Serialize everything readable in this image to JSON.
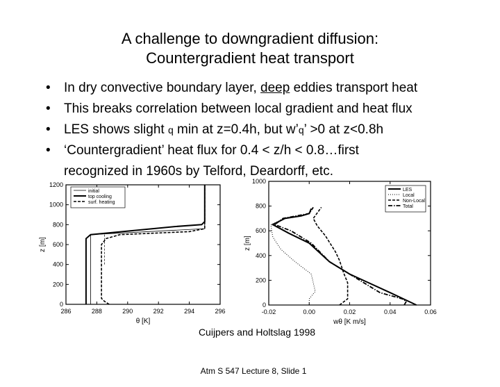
{
  "slide": {
    "title_line1": "A challenge to downgradient diffusion:",
    "title_line2": "Countergradient heat transport",
    "bullets": {
      "b1_pre": "In dry convective boundary layer, ",
      "b1_deep": "deep",
      "b1_post": " eddies transport heat",
      "b2": "This breaks correlation between local gradient and heat flux",
      "b3_a": "LES shows slight ",
      "b3_q": "q",
      "b3_b": " min at z=0.4h, but w",
      "b3_c": "’",
      "b3_d": "q",
      "b3_e": "’",
      "b3_f": " >0 at z<0.8h",
      "b4_a": "‘",
      "b4_b": "Countergradient",
      "b4_c": "’",
      "b4_d": " heat flux for 0.4 < z/h < 0.8…first",
      "b4_line2": "recognized in 1960s by Telford, Deardorff, etc."
    },
    "caption": "Cuijpers and Holtslag 1998",
    "footer": "Atm S 547  Lecture 8, Slide 1"
  },
  "chart_data": [
    {
      "type": "line",
      "xlabel": "θ [K]",
      "ylabel": "z [m]",
      "xlim": [
        286,
        296
      ],
      "ylim": [
        0,
        1200
      ],
      "xticks": [
        "286",
        "288",
        "290",
        "292",
        "294",
        "296"
      ],
      "yticks": [
        "0",
        "200",
        "400",
        "600",
        "800",
        "1000",
        "1200"
      ],
      "legend": "top-left",
      "series": [
        {
          "name": "initial",
          "style": "thin",
          "points": [
            [
              287.6,
              0
            ],
            [
              287.6,
              700
            ],
            [
              295,
              760
            ],
            [
              295,
              1200
            ]
          ]
        },
        {
          "name": "top  cooling",
          "style": "thick",
          "points": [
            [
              287.3,
              0
            ],
            [
              287.3,
              660
            ],
            [
              287.6,
              700
            ],
            [
              293,
              780
            ],
            [
              294.8,
              800
            ],
            [
              295,
              830
            ],
            [
              295,
              1200
            ]
          ]
        },
        {
          "name": "surf.  heating",
          "style": "dashed",
          "points": [
            [
              288.8,
              0
            ],
            [
              288.5,
              30
            ],
            [
              288.3,
              60
            ],
            [
              288.3,
              600
            ],
            [
              288.6,
              660
            ],
            [
              289.5,
              700
            ],
            [
              294,
              730
            ],
            [
              295,
              760
            ],
            [
              295,
              1200
            ]
          ]
        }
      ],
      "annotations": [
        {
          "kind": "dashed-vertical",
          "x": 288.5,
          "ymin": 400,
          "ymax": 700
        }
      ]
    },
    {
      "type": "line",
      "xlabel": "wθ [K m/s]",
      "ylabel": "z [m]",
      "xlim": [
        -0.02,
        0.06
      ],
      "ylim": [
        0,
        1000
      ],
      "xticks": [
        "-0.02",
        "0.00",
        "0.02",
        "0.04",
        "0.06"
      ],
      "yticks": [
        "0",
        "200",
        "400",
        "600",
        "800",
        "1000"
      ],
      "legend": "top-right",
      "series": [
        {
          "name": "LES",
          "style": "thick",
          "points": [
            [
              0.053,
              0
            ],
            [
              0.04,
              100
            ],
            [
              0.02,
              250
            ],
            [
              0.01,
              350
            ],
            [
              0.0,
              500
            ],
            [
              -0.01,
              580
            ],
            [
              -0.018,
              650
            ],
            [
              -0.012,
              700
            ],
            [
              -0.004,
              720
            ],
            [
              0.0,
              740
            ],
            [
              0.001,
              780
            ]
          ]
        },
        {
          "name": "Local",
          "style": "dotted",
          "points": [
            [
              0.0,
              0
            ],
            [
              0.0,
              50
            ],
            [
              0.003,
              110
            ],
            [
              0.001,
              250
            ],
            [
              -0.007,
              350
            ],
            [
              -0.014,
              450
            ],
            [
              -0.018,
              550
            ],
            [
              -0.019,
              650
            ],
            [
              -0.015,
              680
            ]
          ]
        },
        {
          "name": "Non-Local",
          "style": "dashed",
          "points": [
            [
              0.015,
              0
            ],
            [
              0.019,
              50
            ],
            [
              0.019,
              100
            ],
            [
              0.019,
              180
            ],
            [
              0.017,
              260
            ],
            [
              0.015,
              360
            ],
            [
              0.013,
              430
            ],
            [
              0.008,
              560
            ],
            [
              0.004,
              640
            ],
            [
              0.002,
              700
            ],
            [
              0.006,
              790
            ]
          ]
        },
        {
          "name": "Total",
          "style": "dashdot",
          "points": [
            [
              0.047,
              0
            ],
            [
              0.048,
              30
            ],
            [
              0.046,
              50
            ],
            [
              0.035,
              100
            ],
            [
              0.02,
              250
            ],
            [
              0.01,
              350
            ],
            [
              0.001,
              500
            ],
            [
              -0.009,
              600
            ],
            [
              -0.017,
              650
            ],
            [
              -0.013,
              700
            ],
            [
              0.0,
              740
            ],
            [
              0.002,
              790
            ]
          ]
        }
      ]
    }
  ]
}
